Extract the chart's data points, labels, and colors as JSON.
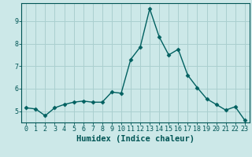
{
  "x": [
    0,
    1,
    2,
    3,
    4,
    5,
    6,
    7,
    8,
    9,
    10,
    11,
    12,
    13,
    14,
    15,
    16,
    17,
    18,
    19,
    20,
    21,
    22,
    23
  ],
  "y": [
    5.15,
    5.1,
    4.8,
    5.15,
    5.3,
    5.4,
    5.45,
    5.4,
    5.4,
    5.85,
    5.8,
    7.3,
    7.85,
    9.55,
    8.3,
    7.5,
    7.75,
    6.6,
    6.05,
    5.55,
    5.3,
    5.05,
    5.2,
    4.6
  ],
  "line_color": "#006060",
  "marker": "D",
  "marker_size": 2.5,
  "bg_color": "#cce8e8",
  "grid_color": "#aacfcf",
  "xlabel": "Humidex (Indice chaleur)",
  "ylim": [
    4.5,
    9.8
  ],
  "xlim": [
    -0.5,
    23.5
  ],
  "yticks": [
    5,
    6,
    7,
    8,
    9
  ],
  "xticks": [
    0,
    1,
    2,
    3,
    4,
    5,
    6,
    7,
    8,
    9,
    10,
    11,
    12,
    13,
    14,
    15,
    16,
    17,
    18,
    19,
    20,
    21,
    22,
    23
  ],
  "title_color": "#005555",
  "axis_color": "#005555",
  "tick_fontsize": 6,
  "label_fontsize": 7.5
}
